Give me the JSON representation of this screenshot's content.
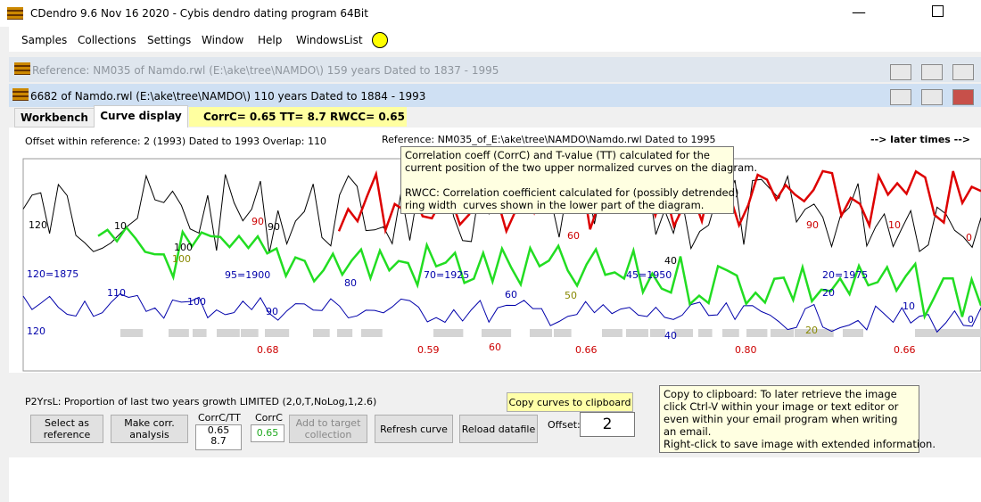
{
  "window": {
    "title": "CDendro 9.6  Nov 16 2020 - Cybis dendro dating program  64Bit"
  },
  "menu": [
    "Samples",
    "Collections",
    "Settings",
    "Window",
    "Help",
    "WindowsList"
  ],
  "reference_window": {
    "title": "Reference: NM035 of Namdo.rwl    (E:\\ake\\tree\\NAMDO\\)  159 years  Dated to 1837 - 1995"
  },
  "sample_window": {
    "title": "6682 of Namdo.rwl    (E:\\ake\\tree\\NAMDO\\)  110 years  Dated to 1884 - 1993"
  },
  "tabs": [
    "Workbench",
    "Curve display"
  ],
  "stats": "CorrC= 0.65  TT= 8.7  RWCC= 0.65",
  "info": {
    "offset": "Offset within reference:   2  (1993)   Dated to 1993  Overlap: 110",
    "reference": "Reference: NM035_of_E:\\ake\\tree\\NAMDO\\Namdo.rwl  Dated to 1995",
    "direction": "--> later times -->"
  },
  "tooltip1": [
    "Correlation coeff (CorrC) and T-value (TT) calculated for the",
    "current position of the two upper normalized curves on the diagram.",
    "",
    "RWCC: Correlation coefficient calculated for (possibly detrended)",
    "ring width  curves shown in the lower part of the diagram."
  ],
  "curve_labels": {
    "black": [
      "120",
      "10",
      "90",
      "100",
      "40"
    ],
    "red": [
      "90",
      "60",
      "60",
      "90",
      "10",
      "0"
    ],
    "blue": [
      "120=1875",
      "110",
      "100",
      "95=1900",
      "90",
      "80",
      "70=1925",
      "60",
      "45=1950",
      "40",
      "20=1975",
      "20",
      "10",
      "0",
      "120"
    ],
    "olive": [
      "100",
      "50",
      "20"
    ],
    "corr": [
      "0.68",
      "0.59",
      "0.66",
      "0.80",
      "0.66"
    ]
  },
  "panel": {
    "method": "P2YrsL: Proportion of last two years growth LIMITED (2,0,T,NoLog,1,2.6)",
    "buttons": [
      "Select as reference",
      "Make corr. analysis",
      "Add to target collection",
      "Refresh curve",
      "Reload datafile"
    ],
    "corrtt_label": "CorrC/TT",
    "corrtt": [
      "0.65",
      "8.7"
    ],
    "corrc_label": "CorrC",
    "corrc": "0.65",
    "offset_label": "Offset:",
    "offset": "2",
    "copy_button": "Copy curves to clipboard"
  },
  "tooltip2": [
    "Copy to clipboard: To later retrieve the image",
    "click Ctrl-V within your image or text editor or",
    "even within your email program when writing",
    "an email.",
    "Right-click to save image with extended information."
  ]
}
